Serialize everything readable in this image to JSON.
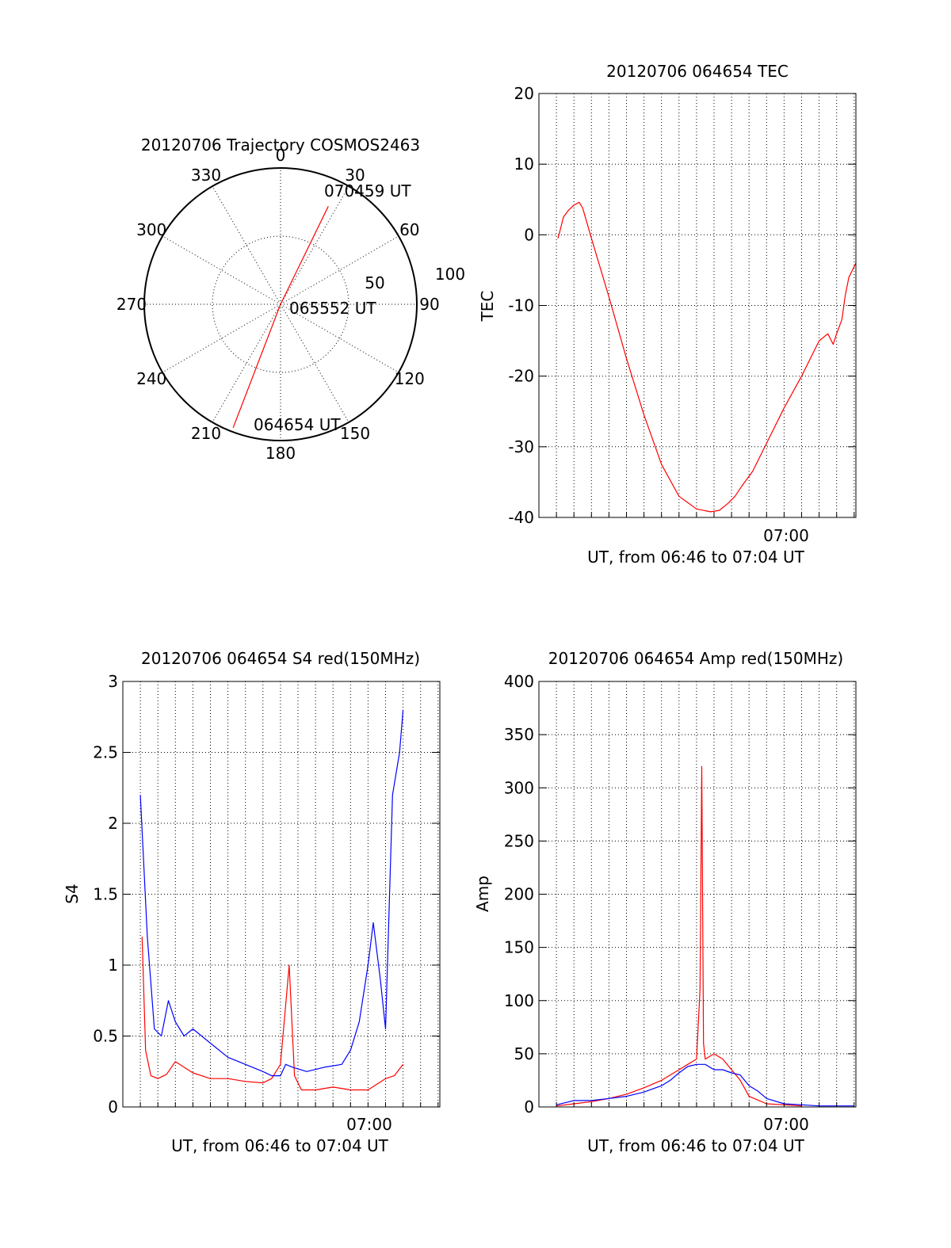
{
  "colors": {
    "red": "#ff0000",
    "blue": "#0000ff",
    "axis": "#000000"
  },
  "chart_data": [
    {
      "type": "polar",
      "title": "20120706 Trajectory COSMOS2463",
      "angle_labels": [
        "0",
        "30",
        "60",
        "90",
        "120",
        "150",
        "180",
        "210",
        "240",
        "270",
        "300",
        "330"
      ],
      "radial_labels": [
        "50",
        "100"
      ],
      "rlim": [
        0,
        100
      ],
      "series": [
        {
          "color": "red",
          "points": [
            {
              "azimuth": 201,
              "distance": 97
            },
            {
              "azimuth": 0,
              "distance": 0
            },
            {
              "azimuth": 26,
              "distance": 80
            }
          ]
        }
      ],
      "annotations": [
        {
          "text": "070459 UT",
          "at": "end"
        },
        {
          "text": "065552 UT",
          "at": "middle"
        },
        {
          "text": "064654 UT",
          "at": "start"
        }
      ]
    },
    {
      "type": "line",
      "title": "20120706 064654 TEC",
      "ylabel": "TEC",
      "xlabel": "UT, from 06:46 to 07:04 UT",
      "xlim_minutes": [
        0,
        18.1
      ],
      "x_tick_label": {
        "minute": 14,
        "text": "07:00"
      },
      "ylim": [
        -40,
        20
      ],
      "yticks": [
        "20",
        "10",
        "0",
        "-10",
        "-20",
        "-30",
        "-40"
      ],
      "grid": true,
      "series": [
        {
          "color": "red",
          "x": [
            1.08,
            1.2,
            1.4,
            1.7,
            2.0,
            2.3,
            2.5,
            3.0,
            4.0,
            5.0,
            6.0,
            7.0,
            8.0,
            9.0,
            9.8,
            10.3,
            10.8,
            11.2,
            11.6,
            12.2,
            13.0,
            14.0,
            15.0,
            16.0,
            16.5,
            16.8,
            17.0,
            17.3,
            17.5,
            17.7,
            17.9,
            18.1
          ],
          "y": [
            -0.5,
            0.5,
            2.5,
            3.5,
            4.2,
            4.6,
            3.8,
            -0.5,
            -8.8,
            -17.5,
            -25.5,
            -32.5,
            -37.0,
            -38.8,
            -39.2,
            -39.0,
            -38.0,
            -37.0,
            -35.5,
            -33.5,
            -29.5,
            -24.5,
            -20.0,
            -15.0,
            -14.0,
            -15.5,
            -14.0,
            -12.0,
            -8.5,
            -6.0,
            -5.0,
            -4.0
          ]
        }
      ]
    },
    {
      "type": "line",
      "title": "20120706 064654 S4 red(150MHz)",
      "ylabel": "S4",
      "xlabel": "UT, from 06:46 to 07:04 UT",
      "xlim_minutes": [
        0,
        18.1
      ],
      "x_tick_label": {
        "minute": 14,
        "text": "07:00"
      },
      "ylim": [
        0,
        3
      ],
      "yticks": [
        "3",
        "2.5",
        "2",
        "1.5",
        "1",
        "0.5",
        "0"
      ],
      "grid": true,
      "series": [
        {
          "color": "red",
          "x": [
            1.1,
            1.3,
            1.6,
            2.0,
            2.5,
            3.0,
            4.0,
            5.0,
            6.0,
            7.0,
            8.0,
            8.5,
            9.0,
            9.5,
            9.8,
            10.2,
            11.0,
            12.0,
            13.0,
            14.0,
            15.0,
            15.5,
            16.0
          ],
          "y": [
            1.2,
            0.4,
            0.22,
            0.2,
            0.23,
            0.32,
            0.24,
            0.2,
            0.2,
            0.18,
            0.17,
            0.2,
            0.3,
            1.0,
            0.22,
            0.12,
            0.12,
            0.14,
            0.12,
            0.12,
            0.2,
            0.22,
            0.3
          ]
        },
        {
          "color": "blue",
          "x": [
            1.0,
            1.4,
            1.8,
            2.2,
            2.6,
            3.0,
            3.5,
            4.0,
            5.0,
            6.0,
            7.0,
            8.0,
            8.5,
            9.0,
            9.3,
            9.7,
            10.5,
            11.5,
            12.5,
            13.0,
            13.5,
            14.0,
            14.3,
            14.7,
            15.0,
            15.4,
            15.8,
            16.0
          ],
          "y": [
            2.2,
            1.2,
            0.55,
            0.5,
            0.75,
            0.6,
            0.5,
            0.55,
            0.45,
            0.35,
            0.3,
            0.25,
            0.22,
            0.22,
            0.3,
            0.28,
            0.25,
            0.28,
            0.3,
            0.4,
            0.6,
            1.0,
            1.3,
            0.9,
            0.55,
            2.2,
            2.5,
            2.8
          ]
        }
      ]
    },
    {
      "type": "line",
      "title": "20120706 064654 Amp red(150MHz)",
      "ylabel": "Amp",
      "xlabel": "UT, from 06:46 to 07:04 UT",
      "xlim_minutes": [
        0,
        18.1
      ],
      "x_tick_label": {
        "minute": 14,
        "text": "07:00"
      },
      "ylim": [
        0,
        400
      ],
      "yticks": [
        "400",
        "350",
        "300",
        "250",
        "200",
        "150",
        "100",
        "50",
        "0"
      ],
      "grid": true,
      "series": [
        {
          "color": "red",
          "x": [
            1.0,
            2.0,
            3.0,
            4.0,
            5.0,
            6.0,
            7.0,
            7.5,
            8.0,
            8.5,
            9.0,
            9.2,
            9.3,
            9.4,
            9.5,
            10.0,
            10.5,
            11.0,
            11.5,
            12.0,
            13.0,
            14.0,
            15.0
          ],
          "y": [
            1,
            3,
            5,
            8,
            12,
            18,
            25,
            30,
            35,
            40,
            45,
            110,
            320,
            60,
            45,
            50,
            45,
            35,
            25,
            10,
            3,
            2,
            1
          ]
        },
        {
          "color": "blue",
          "x": [
            1.0,
            2.0,
            3.0,
            4.0,
            5.0,
            6.0,
            7.0,
            7.5,
            8.0,
            8.5,
            9.0,
            9.5,
            10.0,
            10.5,
            11.0,
            11.5,
            12.0,
            12.5,
            13.0,
            14.0,
            15.0,
            16.0,
            17.0,
            18.0
          ],
          "y": [
            2,
            6,
            6,
            8,
            10,
            14,
            20,
            25,
            32,
            38,
            40,
            40,
            35,
            35,
            32,
            30,
            20,
            15,
            8,
            3,
            2,
            1,
            1,
            1
          ]
        }
      ]
    }
  ]
}
